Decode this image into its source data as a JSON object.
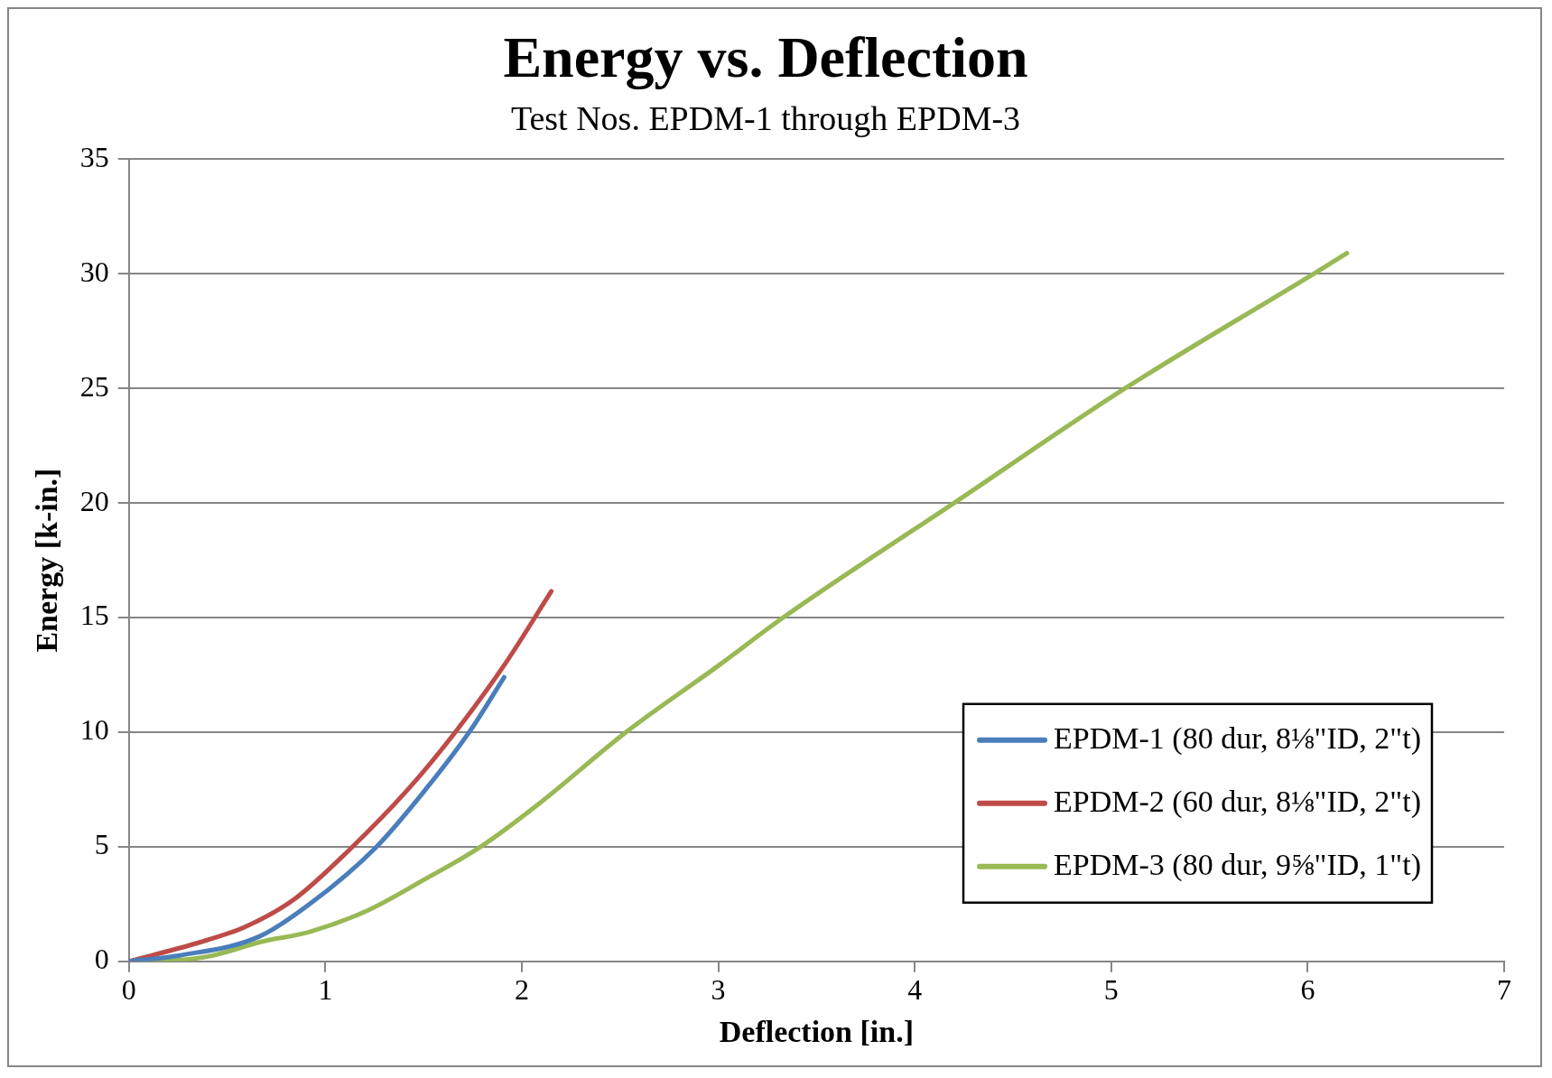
{
  "chart_data": {
    "type": "line",
    "title": "Energy vs. Deflection",
    "subtitle": "Test Nos. EPDM-1 through EPDM-3",
    "xlabel": "Deflection [in.]",
    "ylabel": "Energy [k-in.]",
    "xlim": [
      0,
      7
    ],
    "xticks": [
      0,
      1,
      2,
      3,
      4,
      5,
      6,
      7
    ],
    "ylim": [
      0,
      35
    ],
    "yticks": [
      0,
      5,
      10,
      15,
      20,
      25,
      30,
      35
    ],
    "grid": "y",
    "legend": "bottom right",
    "marker": "none",
    "line_style": "solid",
    "series": [
      {
        "name": "EPDM-1 (80 dur, 8⅛\"ID, 2\"t)",
        "color": "#4a7ebb",
        "x": [
          0,
          0.26,
          0.66,
          0.92,
          1.26,
          1.51,
          1.74,
          1.91
        ],
        "values": [
          0,
          0.26,
          1.07,
          2.5,
          5.0,
          7.5,
          10.1,
          12.4
        ]
      },
      {
        "name": "EPDM-2 (60 dur, 8⅛\"ID, 2\"t)",
        "color": "#be4b48",
        "x": [
          0,
          0.34,
          0.59,
          0.84,
          1.12,
          1.42,
          1.67,
          1.92,
          2.15
        ],
        "values": [
          0,
          0.78,
          1.5,
          2.7,
          4.85,
          7.5,
          10.1,
          13.05,
          16.15
        ]
      },
      {
        "name": "EPDM-3 (80 dur, 9⅝\"ID, 1\"t)",
        "color": "#98b954",
        "x": [
          0,
          0.23,
          0.43,
          0.67,
          0.92,
          1.22,
          1.5,
          1.79,
          2.09,
          2.53,
          3,
          3.33,
          4.2,
          5.07,
          6.03,
          6.2
        ],
        "values": [
          0,
          0.04,
          0.26,
          0.85,
          1.29,
          2.24,
          3.55,
          5.0,
          6.9,
          10.0,
          12.9,
          15.0,
          20.0,
          25.0,
          30.0,
          30.9
        ]
      }
    ]
  }
}
